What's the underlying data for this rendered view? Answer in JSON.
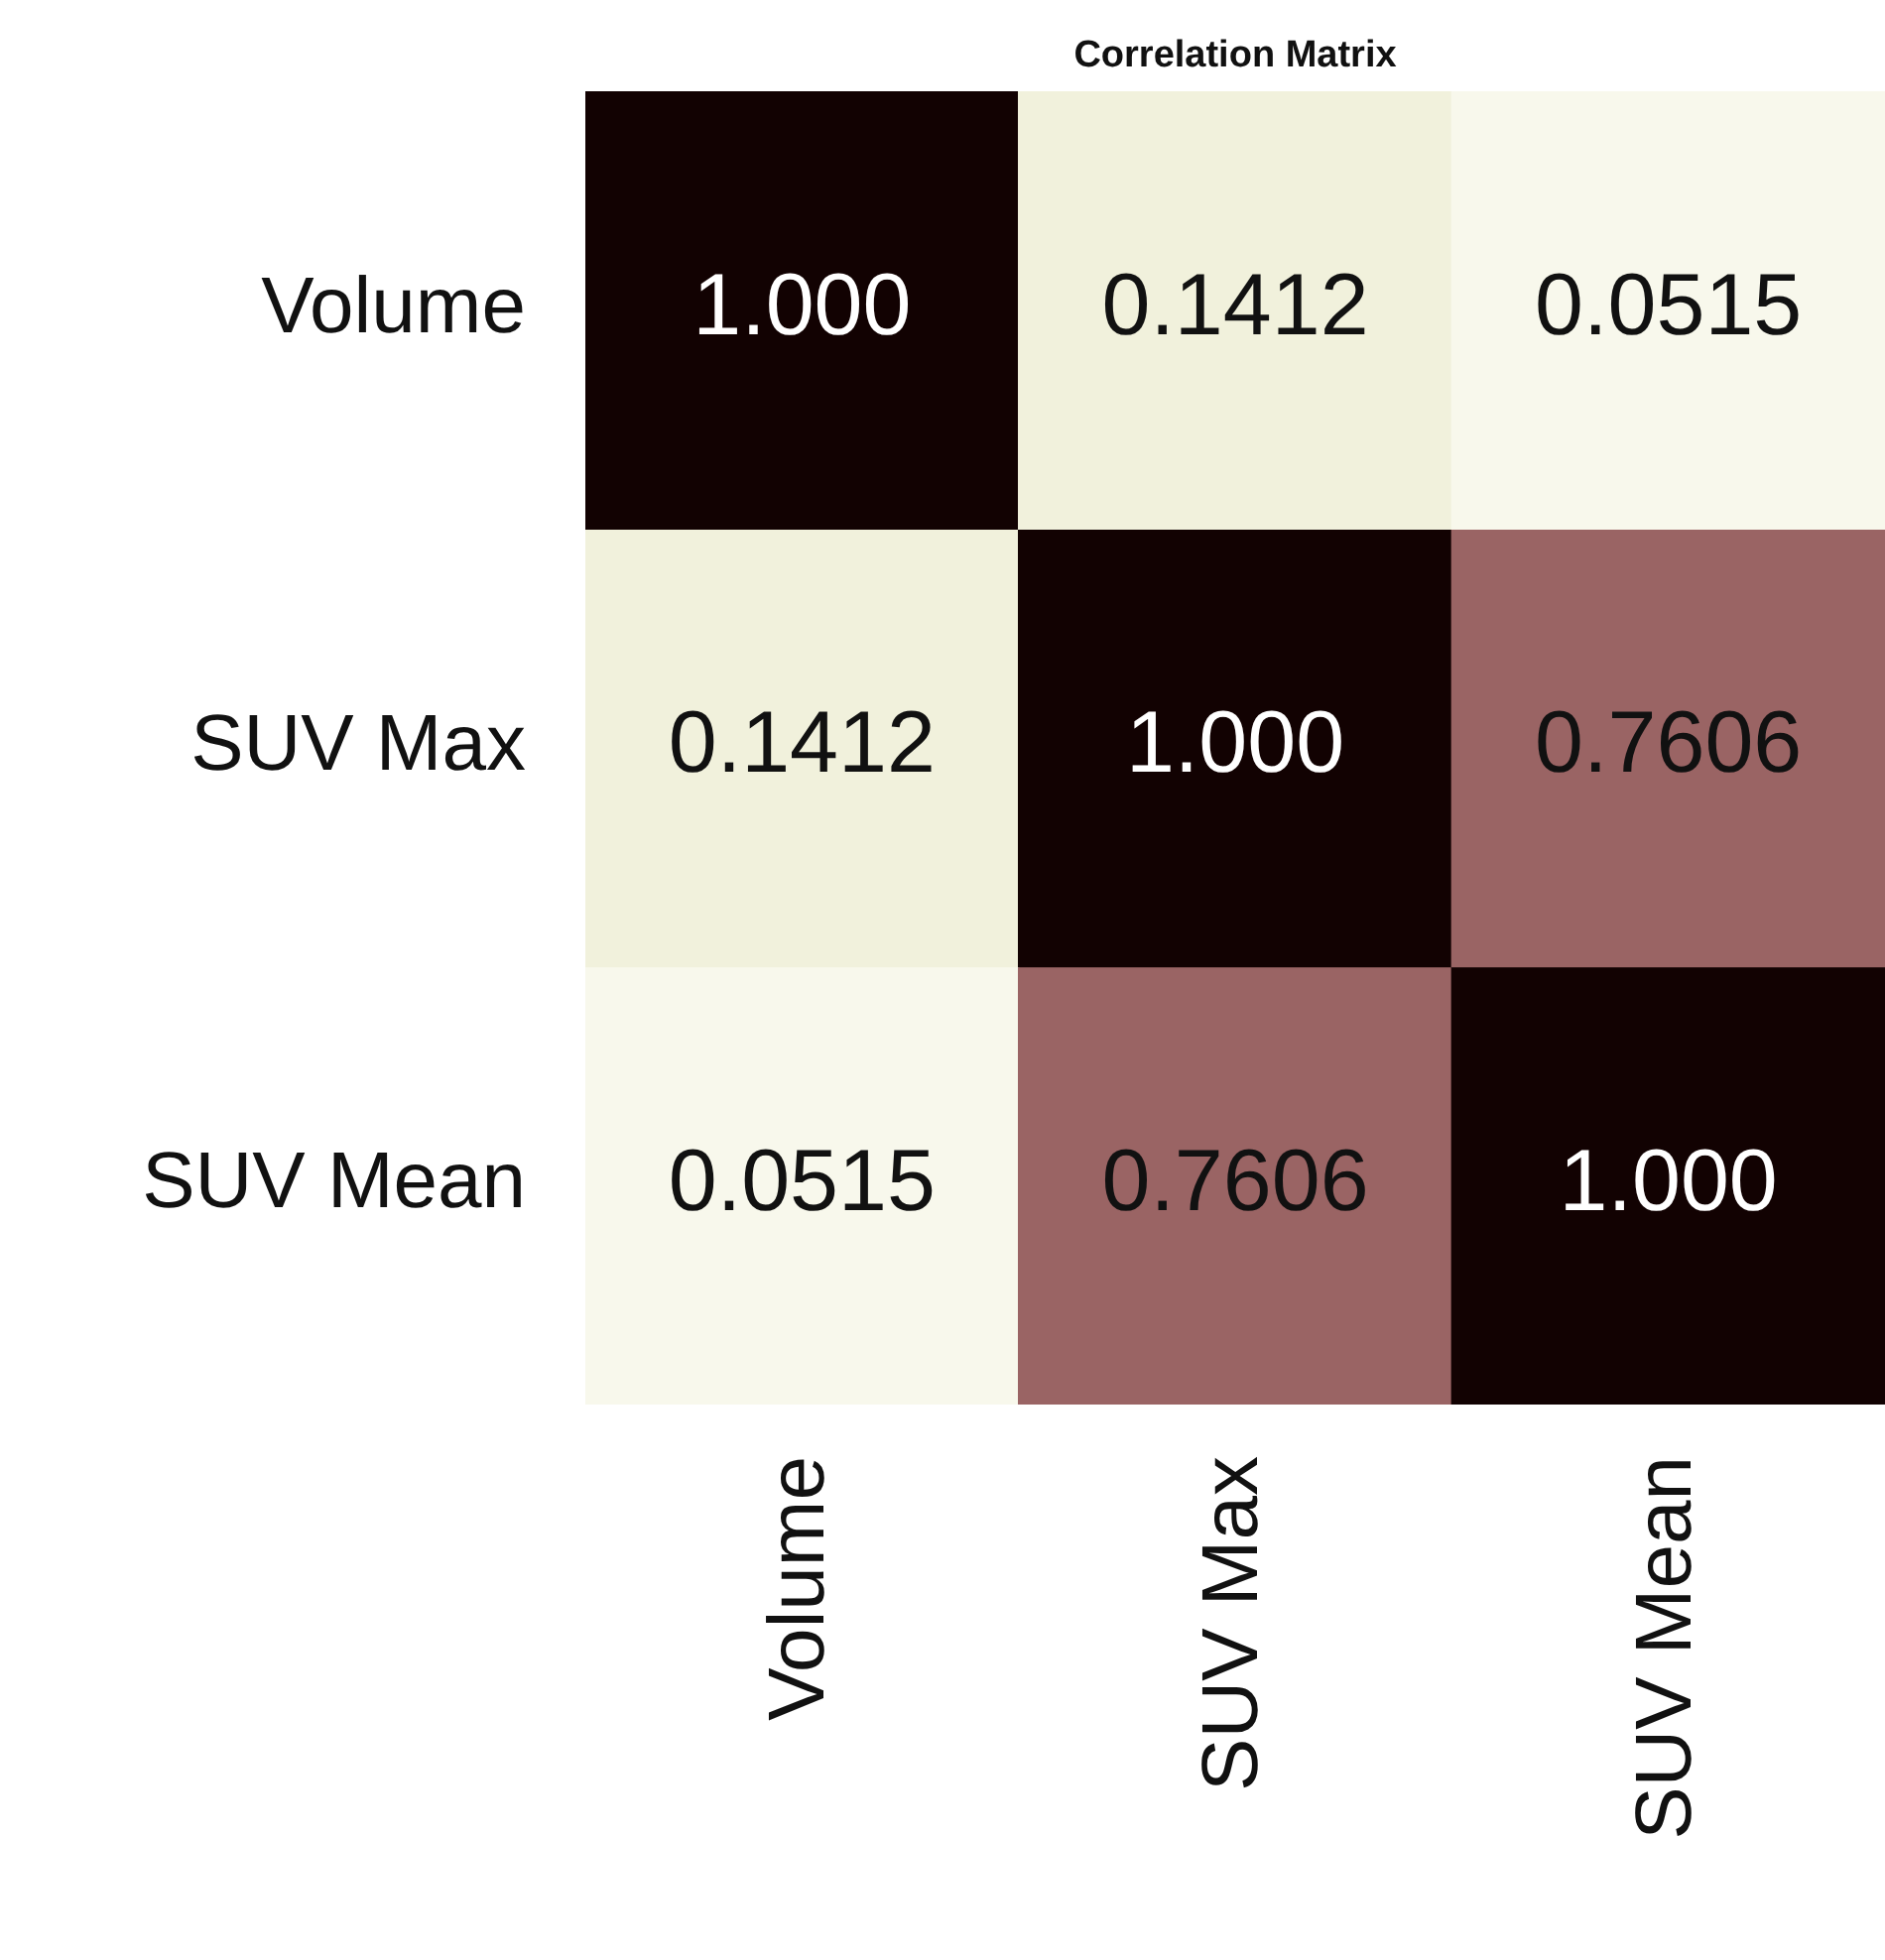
{
  "chart_data": {
    "type": "heatmap",
    "title": "Correlation Matrix",
    "categories": [
      "Volume",
      "SUV Max",
      "SUV Mean"
    ],
    "y_categories": [
      "Volume",
      "SUV Max",
      "SUV Mean"
    ],
    "cells": [
      [
        1,
        0.1412,
        0.0515
      ],
      [
        0.1412,
        1,
        0.7606
      ],
      [
        0.0515,
        0.7606,
        1
      ]
    ],
    "cell_labels": [
      [
        "1.000",
        "0.1412",
        "0.0515"
      ],
      [
        "0.1412",
        "1.000",
        "0.7606"
      ],
      [
        "0.0515",
        "0.7606",
        "1.000"
      ]
    ]
  }
}
